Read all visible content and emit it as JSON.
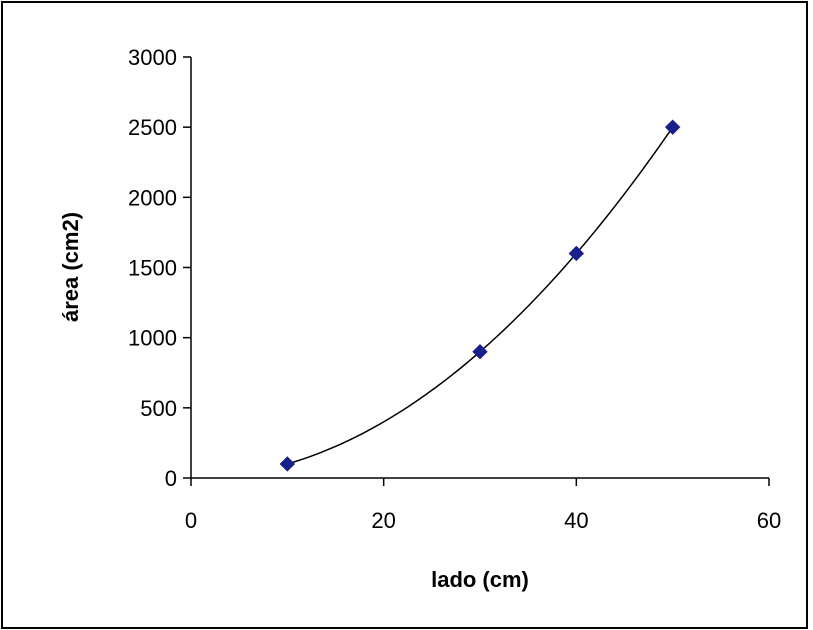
{
  "chart_data": {
    "type": "scatter",
    "title": "",
    "xlabel": "lado (cm)",
    "ylabel": "área (cm2)",
    "xlim": [
      0,
      60
    ],
    "ylim": [
      0,
      3000
    ],
    "xticks": [
      0,
      20,
      40,
      60
    ],
    "yticks": [
      0,
      500,
      1000,
      1500,
      2000,
      2500,
      3000
    ],
    "grid": false,
    "legend": "none",
    "series": [
      {
        "x": [
          10,
          30,
          40,
          50
        ],
        "y": [
          100,
          900,
          1600,
          2500
        ],
        "marker": "diamond",
        "color": "#1a1f8c"
      }
    ],
    "trendline": {
      "type": "polynomial",
      "order": 2,
      "color": "#000000"
    }
  }
}
